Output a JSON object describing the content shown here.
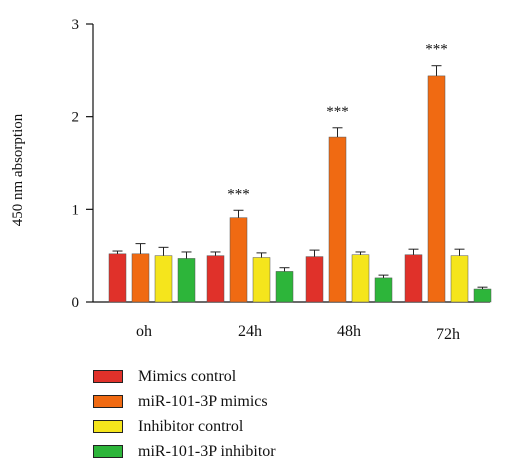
{
  "chart_data": {
    "type": "bar",
    "ylabel": "450 nm absorption",
    "xlabel": "",
    "ylim": [
      0,
      3
    ],
    "yticks": [
      0,
      1,
      2,
      3
    ],
    "categories": [
      "oh",
      "24h",
      "48h",
      "72h"
    ],
    "legend_position": "bottom",
    "grid": false,
    "series": [
      {
        "name": "Mimics control",
        "color": "#e0312a",
        "values": [
          0.52,
          0.5,
          0.49,
          0.51
        ],
        "errors": [
          0.03,
          0.04,
          0.07,
          0.06
        ]
      },
      {
        "name": "miR-101-3P mimics",
        "color": "#f06a12",
        "values": [
          0.52,
          0.91,
          1.78,
          2.44
        ],
        "errors": [
          0.11,
          0.08,
          0.1,
          0.11
        ]
      },
      {
        "name": "Inhibitor control",
        "color": "#f5e51c",
        "values": [
          0.5,
          0.48,
          0.51,
          0.5
        ],
        "errors": [
          0.09,
          0.05,
          0.03,
          0.07
        ]
      },
      {
        "name": "miR-101-3P inhibitor",
        "color": "#2db53a",
        "values": [
          0.47,
          0.33,
          0.26,
          0.14
        ],
        "errors": [
          0.07,
          0.04,
          0.03,
          0.02
        ]
      }
    ],
    "annotations": [
      {
        "category": "24h",
        "series": "miR-101-3P mimics",
        "text": "***"
      },
      {
        "category": "48h",
        "series": "miR-101-3P mimics",
        "text": "***"
      },
      {
        "category": "72h",
        "series": "miR-101-3P mimics",
        "text": "***"
      }
    ]
  }
}
